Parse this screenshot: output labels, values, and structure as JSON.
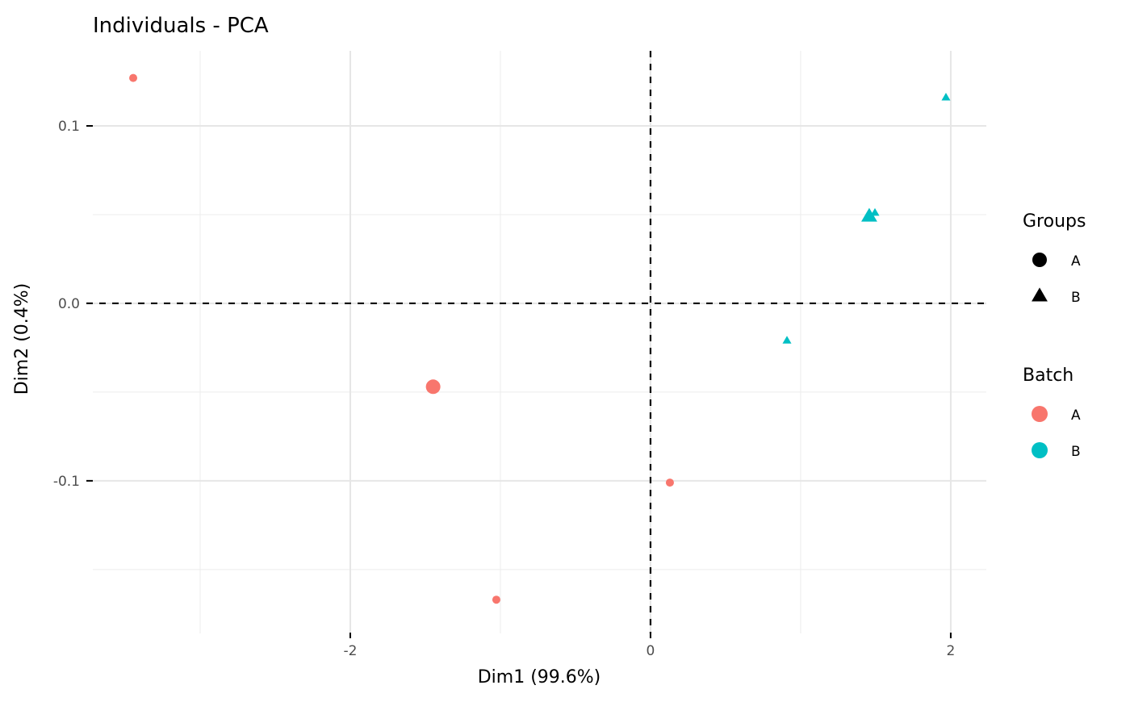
{
  "chart_data": {
    "type": "scatter",
    "title": "Individuals - PCA",
    "xlabel": "Dim1 (99.6%)",
    "ylabel": "Dim2 (0.4%)",
    "xlim": [
      -3.715,
      2.237
    ],
    "ylim": [
      -0.186,
      0.1423
    ],
    "x_ticks": [
      -2,
      0,
      2
    ],
    "x_tick_labels": [
      "-2",
      "0",
      "2"
    ],
    "y_ticks": [
      -0.1,
      0.0,
      0.1
    ],
    "y_tick_labels": [
      "-0.1",
      "0.0",
      "0.1"
    ],
    "grid": true,
    "reference_lines": {
      "x": 0,
      "y": 0,
      "style": "dashed"
    },
    "legend_position": "right",
    "legends": [
      {
        "title": "Groups",
        "items": [
          {
            "label": "A",
            "shape": "circle"
          },
          {
            "label": "B",
            "shape": "triangle"
          }
        ]
      },
      {
        "title": "Batch",
        "items": [
          {
            "label": "A",
            "color": "#F8766D"
          },
          {
            "label": "B",
            "color": "#00BFC4"
          }
        ]
      }
    ],
    "series": [
      {
        "group": "A",
        "batch": "A",
        "shape": "circle",
        "color": "#F8766D",
        "points": [
          {
            "x": -3.446,
            "y": 0.127
          },
          {
            "x": -1.027,
            "y": -0.167
          },
          {
            "x": 0.129,
            "y": -0.101
          }
        ],
        "mean": {
          "x": -1.448,
          "y": -0.047
        }
      },
      {
        "group": "B",
        "batch": "B",
        "shape": "triangle",
        "color": "#00BFC4",
        "points": [
          {
            "x": 0.909,
            "y": -0.021
          },
          {
            "x": 1.495,
            "y": 0.051
          },
          {
            "x": 1.968,
            "y": 0.116
          }
        ],
        "mean": {
          "x": 1.457,
          "y": 0.049
        }
      }
    ]
  }
}
